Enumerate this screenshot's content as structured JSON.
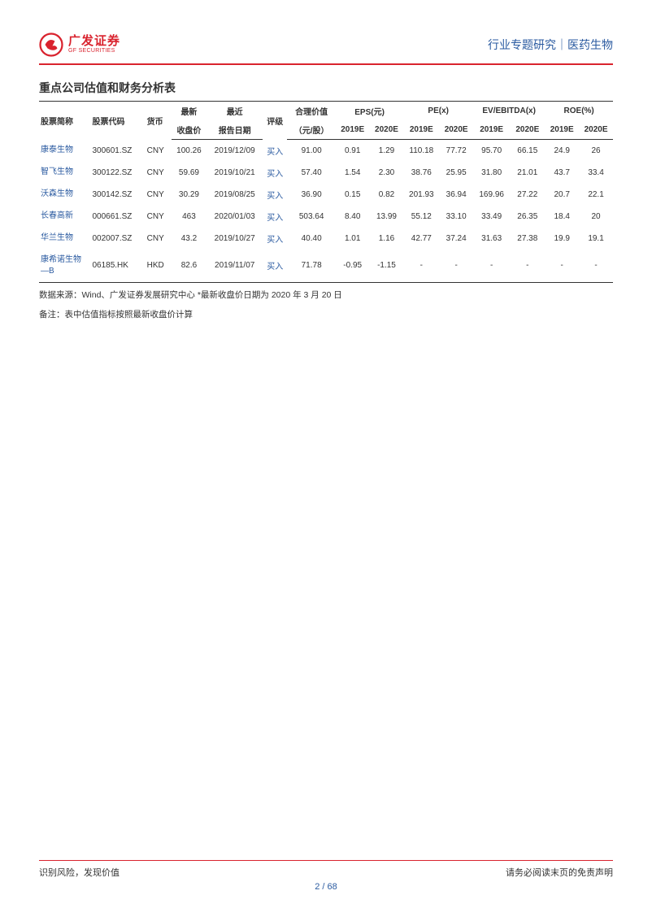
{
  "header": {
    "logo_cn": "广发证券",
    "logo_en": "GF SECURITIES",
    "right_text": "行业专题研究｜医药生物"
  },
  "section_title": "重点公司估值和财务分析表",
  "table": {
    "columns": {
      "name": "股票简称",
      "code": "股票代码",
      "currency": "货币",
      "price_top": "最新",
      "price_bot": "收盘价",
      "report_top": "最近",
      "report_bot": "报告日期",
      "rating": "评级",
      "fairvalue_top": "合理价值",
      "fairvalue_bot": "（元/股）",
      "eps": "EPS(元)",
      "pe": "PE(x)",
      "evebitda": "EV/EBITDA(x)",
      "roe": "ROE(%)",
      "y2019e": "2019E",
      "y2020e": "2020E"
    },
    "rows": [
      {
        "name": "康泰生物",
        "code": "300601.SZ",
        "cur": "CNY",
        "price": "100.26",
        "date": "2019/12/09",
        "rating": "买入",
        "fv": "91.00",
        "eps19": "0.91",
        "eps20": "1.29",
        "pe19": "110.18",
        "pe20": "77.72",
        "ev19": "95.70",
        "ev20": "66.15",
        "roe19": "24.9",
        "roe20": "26"
      },
      {
        "name": "智飞生物",
        "code": "300122.SZ",
        "cur": "CNY",
        "price": "59.69",
        "date": "2019/10/21",
        "rating": "买入",
        "fv": "57.40",
        "eps19": "1.54",
        "eps20": "2.30",
        "pe19": "38.76",
        "pe20": "25.95",
        "ev19": "31.80",
        "ev20": "21.01",
        "roe19": "43.7",
        "roe20": "33.4"
      },
      {
        "name": "沃森生物",
        "code": "300142.SZ",
        "cur": "CNY",
        "price": "30.29",
        "date": "2019/08/25",
        "rating": "买入",
        "fv": "36.90",
        "eps19": "0.15",
        "eps20": "0.82",
        "pe19": "201.93",
        "pe20": "36.94",
        "ev19": "169.96",
        "ev20": "27.22",
        "roe19": "20.7",
        "roe20": "22.1"
      },
      {
        "name": "长春高新",
        "code": "000661.SZ",
        "cur": "CNY",
        "price": "463",
        "date": "2020/01/03",
        "rating": "买入",
        "fv": "503.64",
        "eps19": "8.40",
        "eps20": "13.99",
        "pe19": "55.12",
        "pe20": "33.10",
        "ev19": "33.49",
        "ev20": "26.35",
        "roe19": "18.4",
        "roe20": "20"
      },
      {
        "name": "华兰生物",
        "code": "002007.SZ",
        "cur": "CNY",
        "price": "43.2",
        "date": "2019/10/27",
        "rating": "买入",
        "fv": "40.40",
        "eps19": "1.01",
        "eps20": "1.16",
        "pe19": "42.77",
        "pe20": "37.24",
        "ev19": "31.63",
        "ev20": "27.38",
        "roe19": "19.9",
        "roe20": "19.1"
      },
      {
        "name": "康希诺生物—B",
        "code": "06185.HK",
        "cur": "HKD",
        "price": "82.6",
        "date": "2019/11/07",
        "rating": "买入",
        "fv": "71.78",
        "eps19": "-0.95",
        "eps20": "-1.15",
        "pe19": "-",
        "pe20": "-",
        "ev19": "-",
        "ev20": "-",
        "roe19": "-",
        "roe20": "-"
      }
    ]
  },
  "notes": {
    "line1": "数据来源：Wind、广发证券发展研究中心    *最新收盘价日期为 2020 年 3 月 20 日",
    "line2": "备注：表中估值指标按照最新收盘价计算"
  },
  "footer": {
    "left": "识别风险，发现价值",
    "right": "请务必阅读末页的免责声明",
    "page_current": "2",
    "page_sep": " / ",
    "page_total": "68"
  },
  "style": {
    "accent_red": "#d9232e",
    "accent_blue": "#2a5aa0",
    "text_color": "#333333",
    "background": "#ffffff"
  }
}
